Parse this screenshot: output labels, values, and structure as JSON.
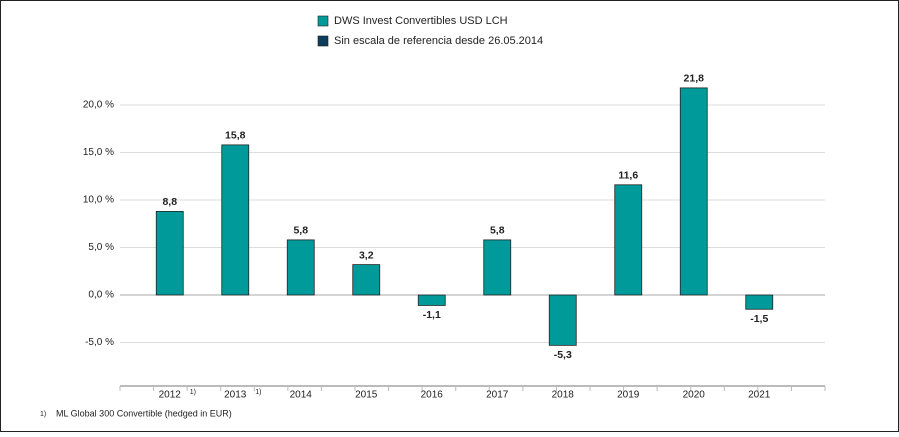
{
  "chart_data": {
    "type": "bar",
    "legend": [
      {
        "name": "DWS Invest Convertibles  USD LCH",
        "color": "#009a9a"
      },
      {
        "name": "Sin escala de referencia desde 26.05.2014",
        "color": "#0b3d5c"
      }
    ],
    "categories": [
      "2012",
      "2013",
      "2014",
      "2015",
      "2016",
      "2017",
      "2018",
      "2019",
      "2020",
      "2021"
    ],
    "category_notes": [
      "1)",
      "1)",
      null,
      null,
      null,
      null,
      null,
      null,
      null,
      null
    ],
    "values": [
      8.8,
      15.8,
      5.8,
      3.2,
      -1.1,
      5.8,
      -5.3,
      11.6,
      21.8,
      -1.5
    ],
    "value_labels": [
      "8,8",
      "15,8",
      "5,8",
      "3,2",
      "-1,1",
      "5,8",
      "-5,3",
      "11,6",
      "21,8",
      "-1,5"
    ],
    "color": "#009a9a",
    "ylim": [
      -7.5,
      25
    ],
    "yticks": [
      {
        "value": -5,
        "label": "-5,0 %"
      },
      {
        "value": 0,
        "label": "0,0 %"
      },
      {
        "value": 5,
        "label": "5,0 %"
      },
      {
        "value": 10,
        "label": "10,0 %"
      },
      {
        "value": 15,
        "label": "15,0 %"
      },
      {
        "value": 20,
        "label": "20,0 %"
      }
    ],
    "grid": true,
    "footnote": {
      "marker": "1)",
      "text": "ML Global 300 Convertible (hedged in EUR)"
    }
  }
}
